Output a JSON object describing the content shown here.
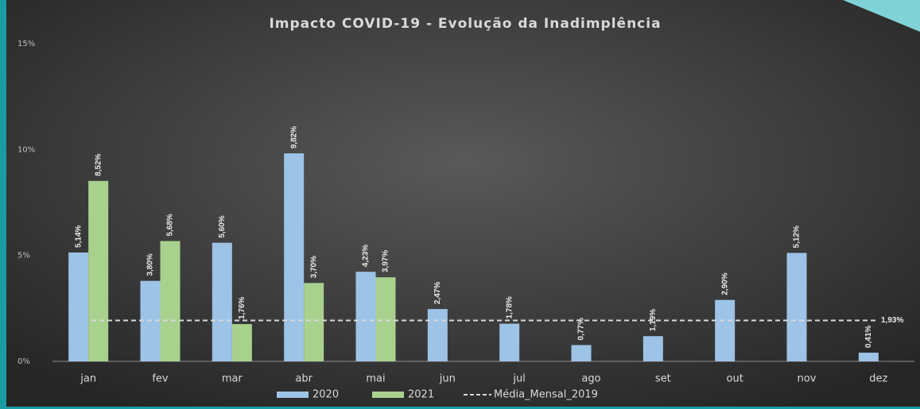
{
  "chart_data": {
    "type": "bar",
    "title": "Impacto COVID-19 - Evolução da Inadimplência",
    "categories": [
      "jan",
      "fev",
      "mar",
      "abr",
      "mai",
      "jun",
      "jul",
      "ago",
      "set",
      "out",
      "nov",
      "dez"
    ],
    "series": [
      {
        "name": "2020",
        "color": "#9dc3e6",
        "values": [
          5.14,
          3.8,
          5.6,
          9.82,
          4.23,
          2.47,
          1.78,
          0.77,
          1.19,
          2.9,
          5.12,
          0.41
        ],
        "value_labels": [
          "5,14%",
          "3,80%",
          "5,60%",
          "9,82%",
          "4,23%",
          "2,47%",
          "1,78%",
          "0,77%",
          "1,19%",
          "2,90%",
          "5,12%",
          "0,41%"
        ]
      },
      {
        "name": "2021",
        "color": "#a9d18e",
        "values": [
          8.52,
          5.68,
          1.76,
          3.7,
          3.97,
          null,
          null,
          null,
          null,
          null,
          null,
          null
        ],
        "value_labels": [
          "8,52%",
          "5,68%",
          "1,76%",
          "3,70%",
          "3,97%",
          null,
          null,
          null,
          null,
          null,
          null,
          null
        ]
      }
    ],
    "reference_line": {
      "name": "Média_Mensal_2019",
      "value": 1.93,
      "label": "1,93%",
      "color": "#d9d9d9"
    },
    "ylim": [
      0,
      15
    ],
    "yticks": [
      {
        "value": 0,
        "label": "0%"
      },
      {
        "value": 5,
        "label": "5%"
      },
      {
        "value": 10,
        "label": "10%"
      },
      {
        "value": 15,
        "label": "15%"
      }
    ],
    "legend": "bottom"
  }
}
